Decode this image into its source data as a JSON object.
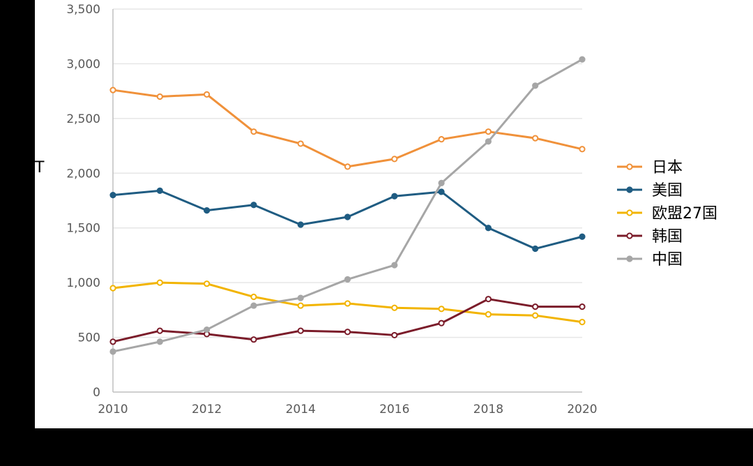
{
  "y_label_fragment": "T",
  "chart_data": {
    "type": "line",
    "x": [
      2010,
      2011,
      2012,
      2013,
      2014,
      2015,
      2016,
      2017,
      2018,
      2019,
      2020
    ],
    "xticks": [
      "2010",
      "2012",
      "2014",
      "2016",
      "2018",
      "2020"
    ],
    "yticks": [
      "0",
      "500",
      "1,000",
      "1,500",
      "2,000",
      "2,500",
      "3,000",
      "3,500"
    ],
    "xlim": [
      2010,
      2020
    ],
    "ylim": [
      0,
      3500
    ],
    "grid": true,
    "legend": "right",
    "series": [
      {
        "name": "日本",
        "color": "#F0913A",
        "marker": "open",
        "values": [
          2760,
          2700,
          2720,
          2380,
          2270,
          2060,
          2130,
          2310,
          2380,
          2320,
          2220
        ]
      },
      {
        "name": "美国",
        "color": "#1F5C82",
        "marker": "filled",
        "values": [
          1800,
          1840,
          1660,
          1710,
          1530,
          1600,
          1790,
          1830,
          1500,
          1310,
          1420
        ]
      },
      {
        "name": "欧盟27国",
        "color": "#F2B400",
        "marker": "open",
        "values": [
          950,
          1000,
          990,
          870,
          790,
          810,
          770,
          760,
          710,
          700,
          640
        ]
      },
      {
        "name": "韩国",
        "color": "#7B1C2A",
        "marker": "open",
        "values": [
          460,
          560,
          530,
          480,
          560,
          550,
          520,
          630,
          850,
          780,
          780
        ]
      },
      {
        "name": "中国",
        "color": "#A6A6A6",
        "marker": "filled",
        "values": [
          370,
          460,
          570,
          790,
          860,
          1030,
          1160,
          1910,
          2290,
          2800,
          3040
        ]
      }
    ]
  }
}
